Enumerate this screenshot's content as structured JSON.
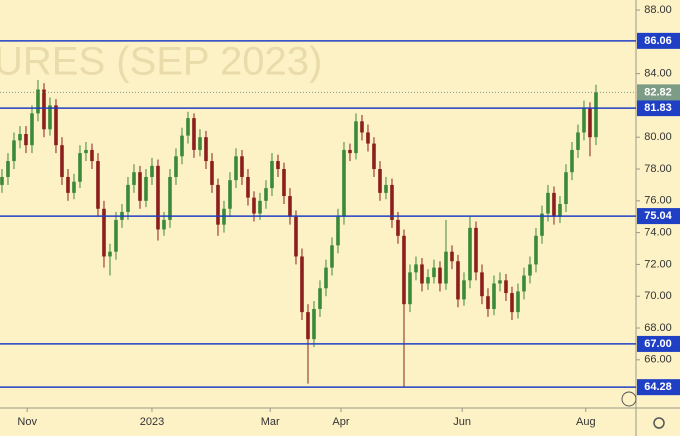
{
  "chart_data": {
    "type": "candlestick",
    "watermark": "URES (SEP 2023)",
    "up_color": "#3b8a3a",
    "down_color": "#8c1f1c",
    "level_color": "#1f3fc4",
    "last_price": 82.82,
    "last_color": "#7d9c85",
    "levels": [
      86.06,
      81.83,
      75.04,
      {
        "value": 67,
        "label": "67.00"
      },
      64.28
    ],
    "ylim": [
      62.97,
      88.63
    ],
    "yticks": [
      {
        "value": 88,
        "label": "88.00"
      },
      {
        "value": 84,
        "label": "84.00"
      },
      {
        "value": 80,
        "label": "80.00"
      },
      {
        "value": 78,
        "label": "78.00"
      },
      {
        "value": 76,
        "label": "76.00"
      },
      {
        "value": 74,
        "label": "74.00"
      },
      {
        "value": 72,
        "label": "72.00"
      },
      {
        "value": 70,
        "label": "70.00"
      },
      {
        "value": 68,
        "label": "68.00"
      },
      {
        "value": 66,
        "label": "66.00"
      }
    ],
    "xlim": [
      -0.33,
      99.67
    ],
    "xticks": [
      {
        "value": 4.2,
        "label": "Nov"
      },
      {
        "value": 25,
        "label": "2023"
      },
      {
        "value": 44.7,
        "label": "Mar"
      },
      {
        "value": 56.5,
        "label": "Apr"
      },
      {
        "value": 76.7,
        "label": "Jun"
      },
      {
        "value": 97.3,
        "label": "Aug"
      }
    ],
    "open": [
      77,
      77.5,
      78.5,
      79.8,
      80.2,
      79.5,
      81.5,
      83,
      80.5,
      82,
      79.5,
      77.5,
      76.5,
      77.2,
      79,
      79.2,
      78.5,
      75.5,
      72.5,
      72.8,
      74.8,
      75.3,
      77,
      77.8,
      76,
      77.5,
      78.2,
      74.2,
      74.8,
      77.5,
      78.8,
      80.1,
      81.2,
      79.2,
      80,
      78.5,
      77,
      74.5,
      75.5,
      77.3,
      78.8,
      77.5,
      76.2,
      75.2,
      76,
      76.8,
      78.5,
      78,
      76.3,
      75,
      72.5,
      69,
      67.3,
      69.2,
      70.5,
      71.8,
      73.2,
      75,
      79.2,
      79,
      81,
      80.3,
      79.6,
      78,
      76.5,
      77,
      74.8,
      73.8,
      69.5,
      71.5,
      72,
      70.8,
      71.2,
      71.8,
      70.8,
      72.8,
      72.2,
      69.8,
      71,
      74.3,
      71.5,
      70,
      69.2,
      70.8,
      71,
      70.2,
      69,
      70.3,
      71.3,
      72,
      73.8,
      75.2,
      76.5,
      75,
      75.8,
      77.8,
      79.2,
      80.3,
      81.8,
      80
    ],
    "high": [
      78,
      79,
      80.3,
      80.7,
      80.7,
      82,
      83.6,
      83.4,
      82.5,
      82.4,
      80,
      78,
      77.7,
      79.5,
      79.7,
      79.6,
      79,
      76,
      73.3,
      75.3,
      75.8,
      77.5,
      78.3,
      78.2,
      78,
      78.7,
      78.6,
      75.3,
      78,
      79.3,
      80.6,
      81.6,
      81.5,
      80.5,
      80.4,
      79,
      77.4,
      76,
      77.8,
      79.3,
      79.2,
      78,
      76.6,
      76.5,
      77.3,
      79,
      78.9,
      78.4,
      76.8,
      75.4,
      73,
      69.5,
      69.7,
      71,
      72.3,
      73.7,
      75.5,
      79.7,
      79.6,
      81.5,
      81.4,
      80.8,
      80,
      78.5,
      77.5,
      77.4,
      75.3,
      74.2,
      72,
      72.5,
      72.4,
      71.7,
      72.3,
      72.2,
      74.8,
      73.2,
      72.6,
      71.5,
      75,
      74.7,
      72,
      70.5,
      71.3,
      71.5,
      71.4,
      70.6,
      70.8,
      71.8,
      72.5,
      74.3,
      75.7,
      77,
      76.9,
      76.3,
      78.3,
      79.7,
      80.8,
      82.3,
      82.2,
      83.3
    ],
    "low": [
      76.5,
      77,
      78,
      79.3,
      79,
      79,
      81,
      80,
      80.1,
      79,
      77,
      76,
      76.1,
      76.8,
      78.5,
      78,
      75,
      71.8,
      71.3,
      72.3,
      74.3,
      74.8,
      76.5,
      75.5,
      75.6,
      77,
      73.5,
      73.8,
      74.3,
      77,
      78.3,
      79.6,
      78.7,
      78.8,
      78,
      76.5,
      73.8,
      74,
      75,
      76.8,
      77,
      75.7,
      74.7,
      74.8,
      75.5,
      76.3,
      77.5,
      75.8,
      74.5,
      72,
      68.5,
      64.5,
      66.8,
      68.7,
      70,
      71.3,
      72.7,
      74.5,
      78.5,
      78.6,
      79.8,
      79.1,
      77.5,
      76,
      76.1,
      74.3,
      73.3,
      64.3,
      69,
      71,
      70.3,
      70.4,
      70.8,
      70.3,
      70.4,
      71.7,
      69.3,
      69.4,
      70.5,
      71,
      69.5,
      68.7,
      68.8,
      70.3,
      69.7,
      68.5,
      68.6,
      69.8,
      70.8,
      71.5,
      73.3,
      74.7,
      74.5,
      74.6,
      75.3,
      77.3,
      78.7,
      79.8,
      78.8,
      79.5
    ],
    "close": [
      77.5,
      78.5,
      79.8,
      80.2,
      79.5,
      81.5,
      83,
      80.5,
      82,
      79.5,
      77.5,
      76.5,
      77.2,
      79,
      79.2,
      78.5,
      75.5,
      72.5,
      72.8,
      74.8,
      75.3,
      77,
      77.8,
      76,
      77.5,
      78.2,
      74.2,
      74.8,
      77.5,
      78.8,
      80.1,
      81.2,
      79.2,
      80,
      78.5,
      77,
      74.5,
      75.5,
      77.3,
      78.8,
      77.5,
      76.2,
      75.2,
      76,
      76.8,
      78.5,
      78,
      76.3,
      75,
      72.5,
      69,
      67.3,
      69.2,
      70.5,
      71.8,
      73.2,
      75,
      79.2,
      79,
      81,
      80.3,
      79.6,
      78,
      76.5,
      77,
      74.8,
      73.8,
      69.5,
      71.5,
      72,
      70.8,
      71.2,
      71.8,
      70.8,
      72.8,
      72.2,
      69.8,
      71,
      74.3,
      71.5,
      70,
      69.2,
      70.8,
      71,
      70.2,
      69,
      70.3,
      71.3,
      72,
      73.8,
      75.2,
      76.5,
      75,
      75.8,
      77.8,
      79.2,
      80.3,
      81.8,
      80,
      82.82
    ]
  }
}
